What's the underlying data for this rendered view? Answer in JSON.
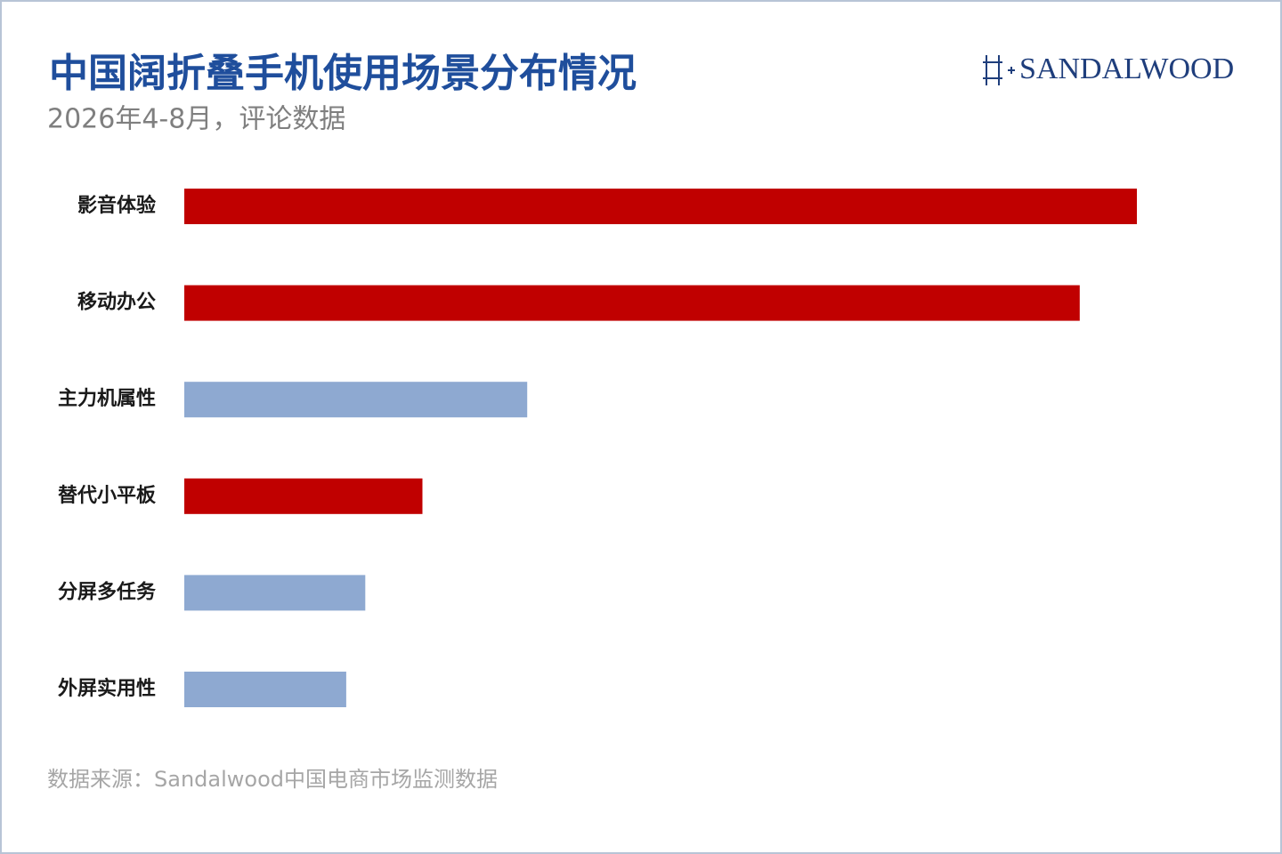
{
  "chart_data": {
    "type": "bar",
    "orientation": "horizontal",
    "title": "中国阔折叠手机使用场景分布情况",
    "subtitle": "2026年4-8月，评论数据",
    "categories": [
      "影音体验",
      "移动办公",
      "主力机属性",
      "替代小平板",
      "分屏多任务",
      "外屏实用性"
    ],
    "values": [
      100,
      94,
      36,
      25,
      19,
      17
    ],
    "colors": [
      "#c00000",
      "#c00000",
      "#8ea9d1",
      "#c00000",
      "#8ea9d1",
      "#8ea9d1"
    ],
    "source": "数据来源：Sandalwood中国电商市场监测数据"
  },
  "brand": "SANDALWOOD"
}
